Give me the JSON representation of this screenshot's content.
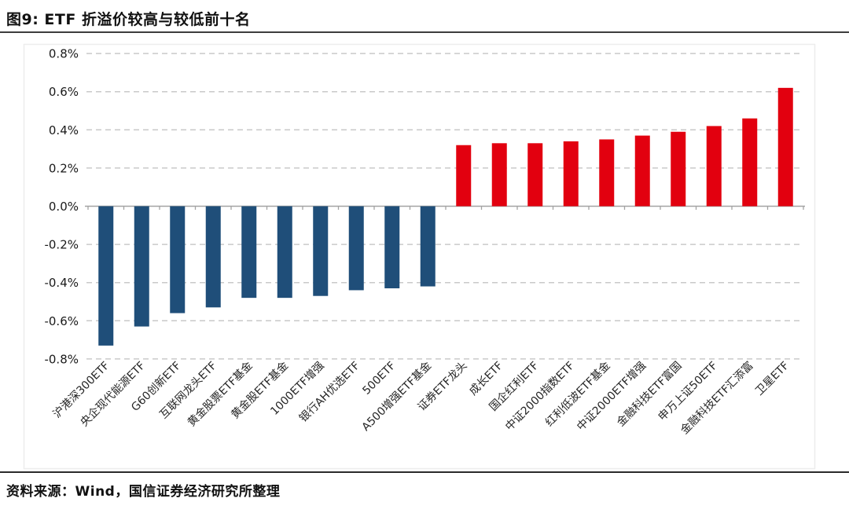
{
  "figure": {
    "title": "图9: ETF 折溢价较高与较低前十名",
    "source": "资料来源：Wind，国信证券经济研究所整理"
  },
  "colors": {
    "negative_bar": "#1F4E79",
    "positive_bar": "#E2000F",
    "gridline": "#C9C9C9",
    "axis": "#A3A3A3",
    "tick_label": "#1A1A1A",
    "category_label": "#262626",
    "chart_border": "#EDEDED"
  },
  "chart_data": {
    "type": "bar",
    "title": "图9: ETF 折溢价较高与较低前十名",
    "xlabel": "",
    "ylabel": "",
    "unit": "%",
    "ylim": [
      -0.8,
      0.8
    ],
    "ytick_step": 0.2,
    "ytick_labels": [
      "-0.8%",
      "-0.6%",
      "-0.4%",
      "-0.2%",
      "0.0%",
      "0.2%",
      "0.4%",
      "0.6%",
      "0.8%"
    ],
    "grid": "horizontal-dashed",
    "legend_position": "none",
    "category_label_rotation_deg": -45,
    "categories": [
      "沪港深300ETF",
      "央企现代能源ETF",
      "G60创新ETF",
      "互联网龙头ETF",
      "黄金股票ETF基金",
      "黄金股ETF基金",
      "1000ETF增强",
      "银行AH优选ETF",
      "500ETF",
      "A500增强ETF基金",
      "证券ETF龙头",
      "成长ETF",
      "国企红利ETF",
      "中证2000指数ETF",
      "红利低波ETF基金",
      "中证2000ETF增强",
      "金融科技ETF富国",
      "申万上证50ETF",
      "金融科技ETF汇添富",
      "卫星ETF"
    ],
    "values": [
      -0.73,
      -0.63,
      -0.56,
      -0.53,
      -0.48,
      -0.48,
      -0.47,
      -0.44,
      -0.43,
      -0.42,
      0.32,
      0.33,
      0.33,
      0.34,
      0.35,
      0.37,
      0.39,
      0.42,
      0.46,
      0.62
    ]
  }
}
